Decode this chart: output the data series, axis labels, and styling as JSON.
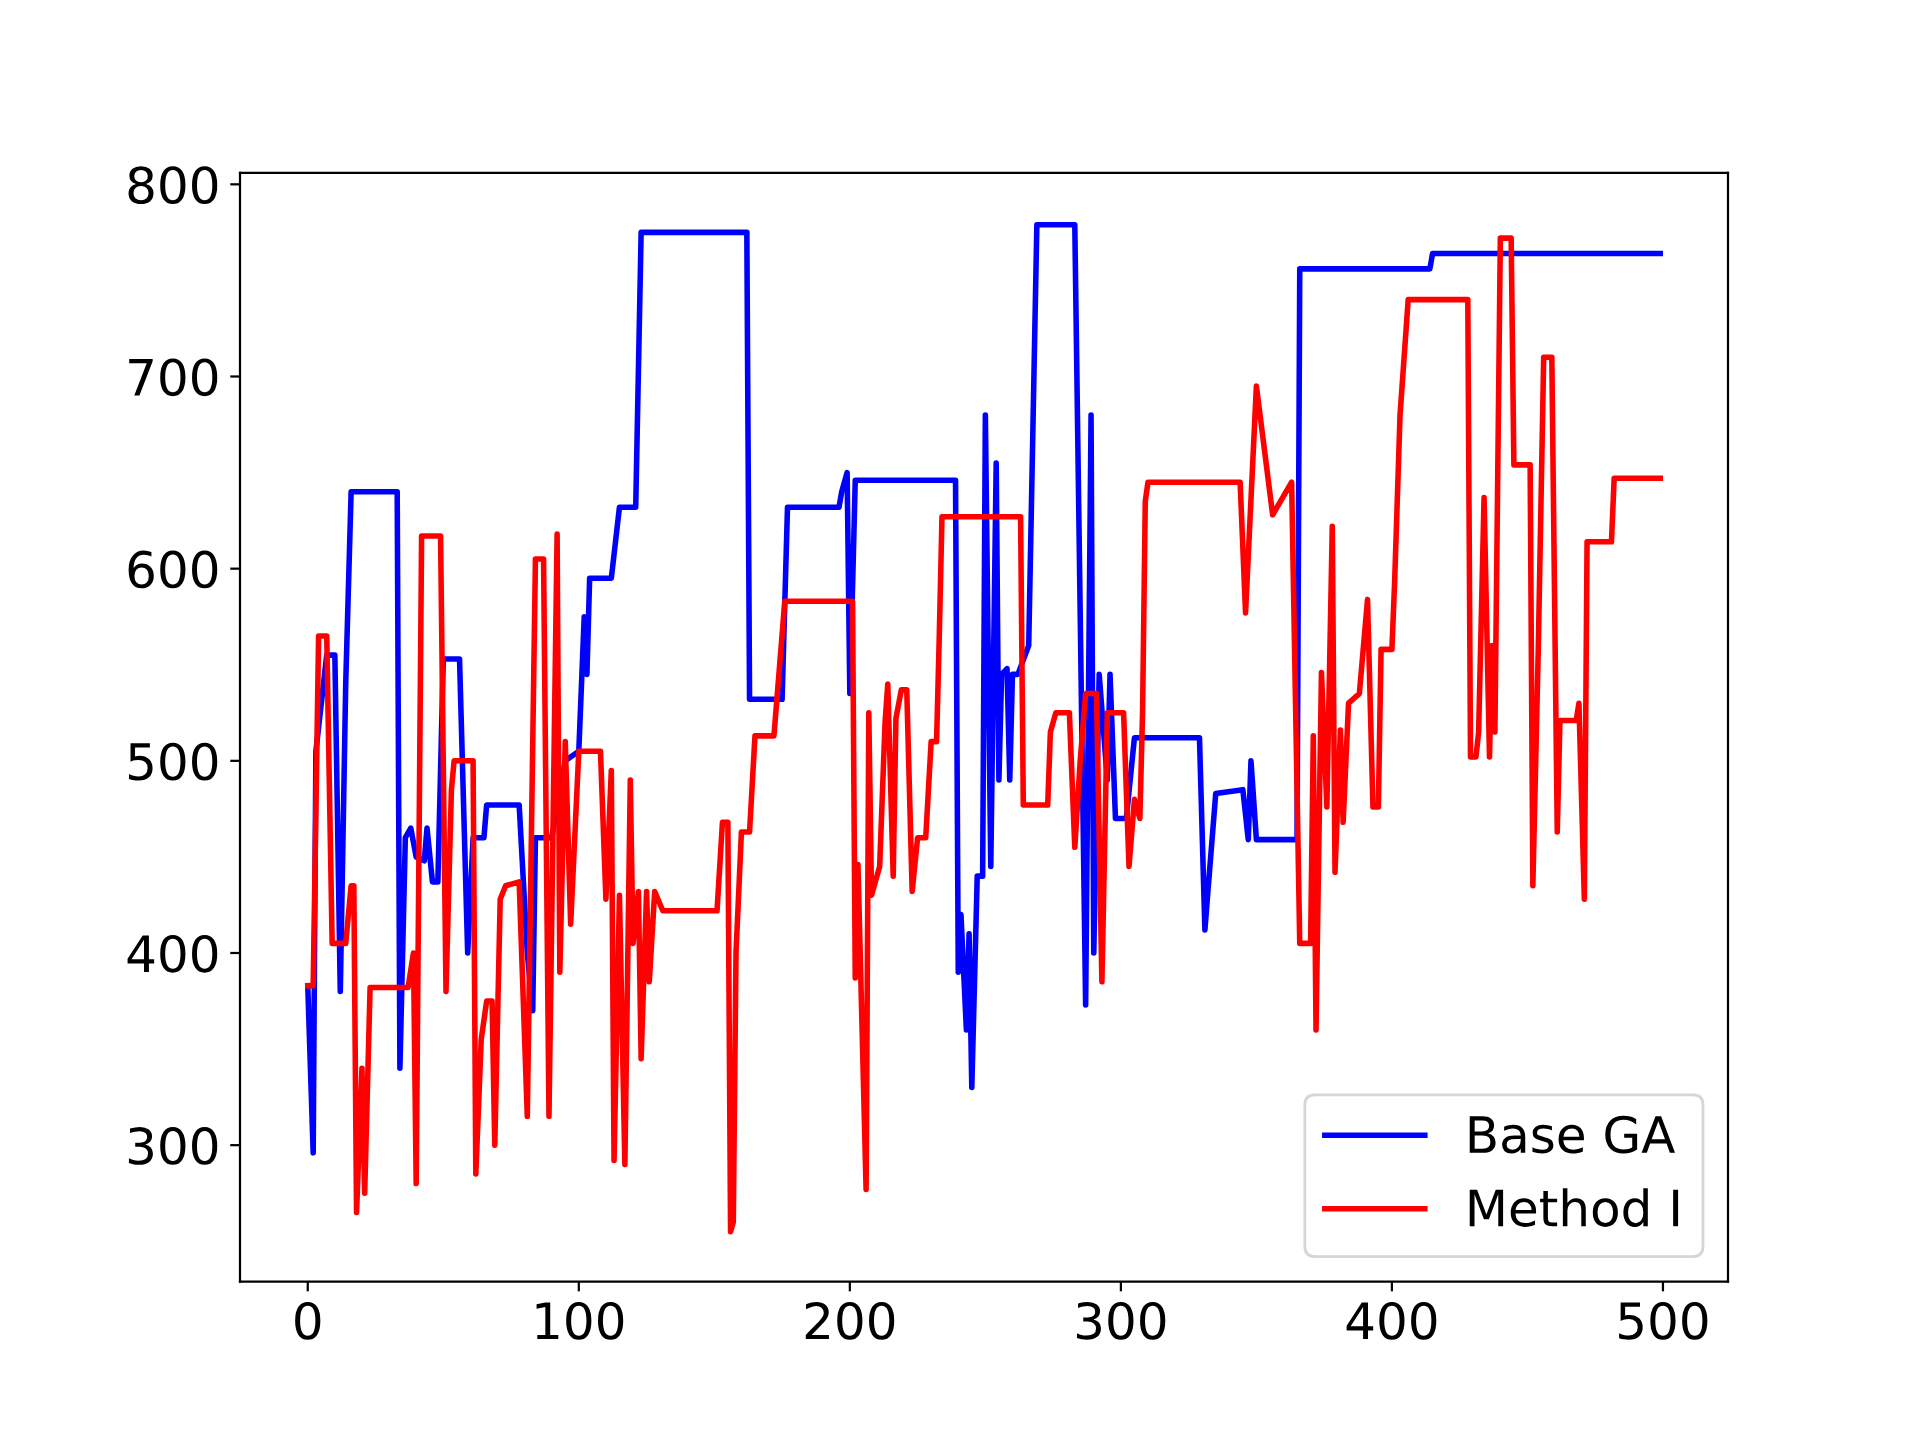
{
  "chart_data": {
    "type": "line",
    "legend": "lower right",
    "grid": false,
    "xlim": [
      -25,
      524
    ],
    "ylim": [
      229,
      806
    ],
    "xticks": [
      0,
      100,
      200,
      300,
      400,
      500
    ],
    "yticks": [
      300,
      400,
      500,
      600,
      700,
      800
    ],
    "series": [
      {
        "name": "Base GA",
        "color": "#0000ff",
        "x": [
          0,
          2,
          3,
          7,
          10,
          12,
          14,
          16,
          33,
          34,
          36,
          38,
          40,
          43,
          44,
          46,
          48,
          50,
          56,
          59,
          61,
          65,
          66,
          78,
          81,
          83,
          84,
          90,
          95,
          100,
          102,
          103,
          104,
          112,
          115,
          121,
          123,
          162,
          163,
          175,
          177,
          196,
          197,
          199,
          200,
          202,
          239,
          240,
          241,
          243,
          244,
          245,
          247,
          249,
          250,
          252,
          254,
          255,
          256,
          258,
          259,
          260,
          262,
          266,
          269,
          283,
          287,
          289,
          290,
          292,
          295,
          296,
          298,
          302,
          305,
          329,
          331,
          332,
          335,
          345,
          347,
          348,
          350,
          352,
          365,
          366,
          414,
          415,
          499
        ],
        "values": [
          383,
          296,
          505,
          555,
          555,
          380,
          540,
          640,
          640,
          340,
          460,
          465,
          450,
          448,
          465,
          437,
          437,
          553,
          553,
          400,
          460,
          460,
          477,
          477,
          400,
          370,
          460,
          460,
          500,
          505,
          575,
          545,
          595,
          595,
          632,
          632,
          775,
          775,
          532,
          532,
          632,
          632,
          640,
          650,
          535,
          646,
          646,
          390,
          420,
          360,
          410,
          330,
          440,
          440,
          680,
          445,
          655,
          490,
          545,
          548,
          490,
          545,
          545,
          560,
          779,
          779,
          373,
          680,
          400,
          545,
          490,
          545,
          470,
          470,
          512,
          512,
          412,
          430,
          483,
          485,
          459,
          500,
          459,
          459,
          459,
          756,
          756,
          764,
          764
        ]
      },
      {
        "name": "Method I",
        "color": "#ff0000",
        "x": [
          0,
          2,
          4,
          7,
          9,
          14,
          16,
          17,
          18,
          20,
          21,
          23,
          37,
          39,
          40,
          42,
          49,
          51,
          53,
          54,
          61,
          62,
          64,
          66,
          68,
          69,
          71,
          73,
          78,
          81,
          84,
          87,
          89,
          92,
          93,
          95,
          97,
          100,
          108,
          110,
          112,
          113,
          115,
          117,
          119,
          120,
          122,
          123,
          125,
          126,
          128,
          131,
          151,
          153,
          155,
          156,
          157,
          158,
          160,
          163,
          165,
          172,
          176,
          201,
          202,
          203,
          206,
          207,
          208,
          211,
          213,
          214,
          216,
          217,
          219,
          221,
          223,
          225,
          228,
          230,
          232,
          233,
          234,
          263,
          264,
          273,
          274,
          276,
          281,
          283,
          285,
          287,
          291,
          293,
          295,
          301,
          303,
          305,
          307,
          308,
          309,
          310,
          344,
          346,
          350,
          356,
          363,
          366,
          370,
          371,
          372,
          374,
          376,
          378,
          379,
          381,
          382,
          384,
          388,
          391,
          393,
          395,
          396,
          400,
          401,
          403,
          406,
          428,
          429,
          431,
          432,
          434,
          436,
          437,
          438,
          440,
          444,
          445,
          451,
          452,
          454,
          456,
          459,
          461,
          462,
          468,
          469,
          471,
          472,
          481,
          482,
          499
        ],
        "values": [
          383,
          383,
          565,
          565,
          405,
          405,
          435,
          435,
          265,
          340,
          275,
          382,
          382,
          400,
          280,
          617,
          617,
          380,
          485,
          500,
          500,
          285,
          355,
          375,
          375,
          300,
          428,
          435,
          437,
          315,
          605,
          605,
          315,
          618,
          390,
          510,
          415,
          505,
          505,
          428,
          495,
          292,
          430,
          290,
          490,
          405,
          432,
          345,
          432,
          385,
          432,
          422,
          422,
          468,
          468,
          255,
          260,
          400,
          463,
          463,
          513,
          513,
          583,
          583,
          387,
          446,
          277,
          525,
          430,
          445,
          520,
          540,
          440,
          522,
          537,
          537,
          432,
          460,
          460,
          510,
          510,
          565,
          627,
          627,
          477,
          477,
          515,
          525,
          525,
          455,
          500,
          535,
          535,
          385,
          525,
          525,
          445,
          480,
          470,
          525,
          635,
          645,
          645,
          577,
          695,
          628,
          645,
          405,
          405,
          513,
          360,
          546,
          476,
          622,
          442,
          516,
          468,
          530,
          535,
          584,
          476,
          476,
          558,
          558,
          593,
          680,
          740,
          740,
          502,
          502,
          515,
          637,
          502,
          560,
          515,
          772,
          772,
          654,
          654,
          435,
          558,
          710,
          710,
          463,
          521,
          521,
          530,
          428,
          614,
          614,
          647,
          647
        ]
      }
    ]
  }
}
